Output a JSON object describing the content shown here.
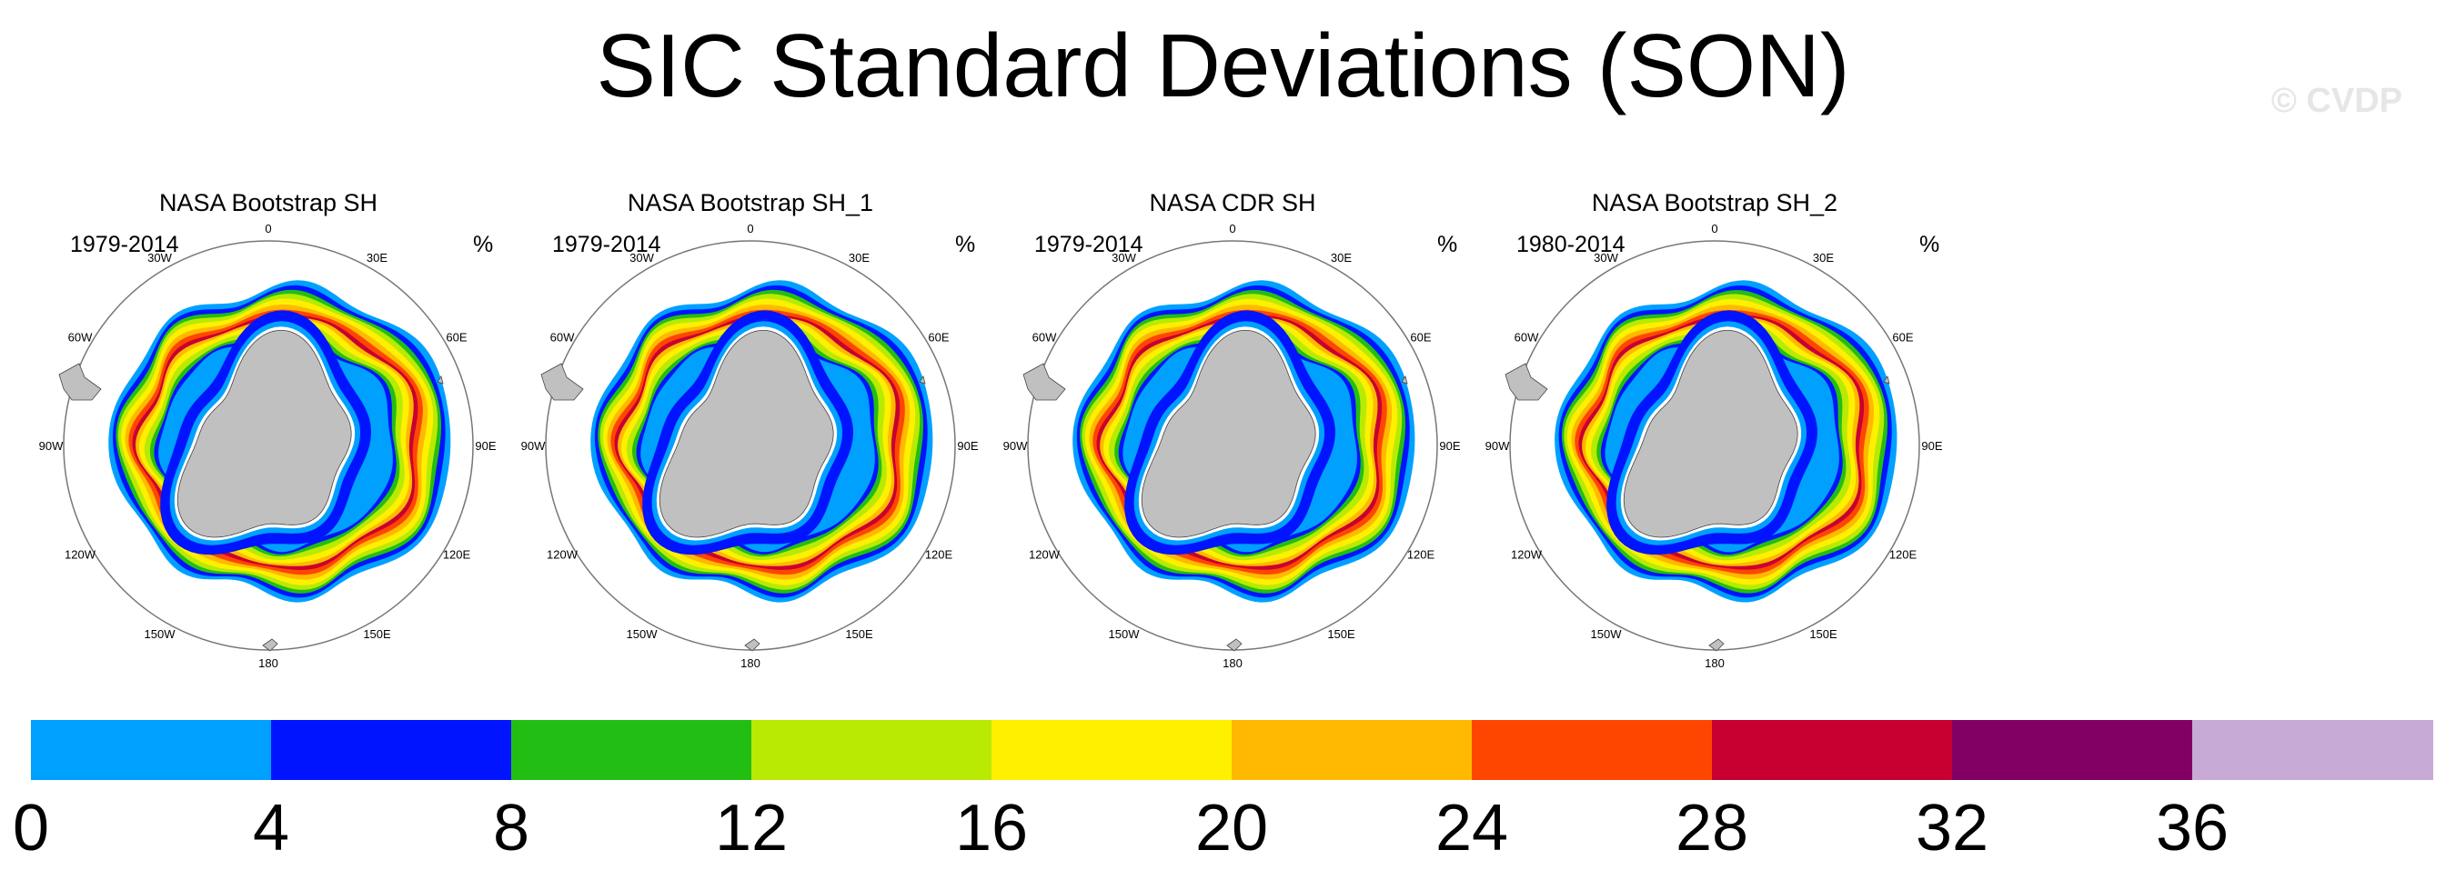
{
  "title": "SIC Standard Deviations (SON)",
  "watermark": "© CVDP",
  "units": "%",
  "panels": [
    {
      "title": "NASA Bootstrap SH",
      "period": "1979-2014"
    },
    {
      "title": "NASA Bootstrap SH_1",
      "period": "1979-2014"
    },
    {
      "title": "NASA CDR SH",
      "period": "1979-2014"
    },
    {
      "title": "NASA Bootstrap SH_2",
      "period": "1980-2014"
    }
  ],
  "longitude_labels": [
    "0",
    "30E",
    "60E",
    "90E",
    "120E",
    "150E",
    "180",
    "150W",
    "120W",
    "90W",
    "60W",
    "30W"
  ],
  "colorbar": {
    "labels": [
      "0",
      "4",
      "8",
      "12",
      "16",
      "20",
      "24",
      "28",
      "32",
      "36"
    ],
    "colors": [
      "#00a0ff",
      "#0014ff",
      "#23be14",
      "#b9ea04",
      "#fff000",
      "#ffb900",
      "#ff4600",
      "#c80032",
      "#820064",
      "#c8aad7"
    ]
  },
  "map_colors": {
    "land": "#c0c0c0",
    "ocean_bg": "#ffffff"
  }
}
